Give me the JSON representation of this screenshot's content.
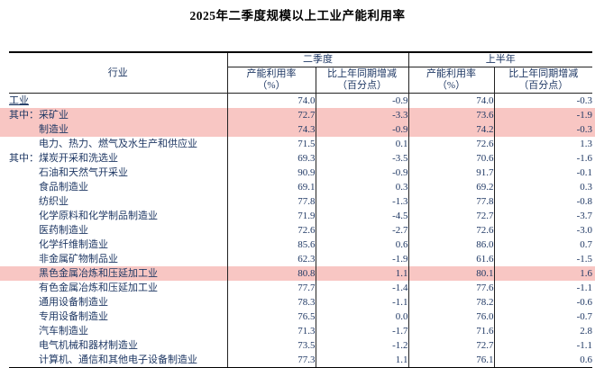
{
  "title": "2025年二季度规模以上工业产能利用率",
  "colors": {
    "highlight": "#f8c6c3",
    "text": "#1f3864",
    "border": "#222222"
  },
  "table": {
    "industry_header": "行业",
    "groups": [
      {
        "label": "二季度",
        "rate_label": "产能利用率",
        "rate_unit": "（%）",
        "chg_label": "比上年同期增减",
        "chg_unit": "（百分点）"
      },
      {
        "label": "上半年",
        "rate_label": "产能利用率",
        "rate_unit": "（%）",
        "chg_label": "比上年同期增减",
        "chg_unit": "（百分点）"
      }
    ],
    "rows": [
      {
        "prefix": "",
        "name": "工业",
        "indent": false,
        "bold": true,
        "underline": true,
        "highlight": false,
        "values": [
          "74.0",
          "-0.9",
          "74.0",
          "-0.3"
        ]
      },
      {
        "prefix": "其中：",
        "name": "采矿业",
        "indent": true,
        "bold": false,
        "underline": false,
        "highlight": true,
        "values": [
          "72.7",
          "-3.3",
          "73.6",
          "-1.9"
        ]
      },
      {
        "prefix": "",
        "name": "制造业",
        "indent": true,
        "bold": false,
        "underline": false,
        "highlight": true,
        "values": [
          "74.3",
          "-0.9",
          "74.2",
          "-0.3"
        ]
      },
      {
        "prefix": "",
        "name": "电力、热力、燃气及水生产和供应业",
        "indent": true,
        "bold": false,
        "underline": false,
        "highlight": false,
        "values": [
          "71.5",
          "0.1",
          "72.6",
          "1.3"
        ]
      },
      {
        "prefix": "其中：",
        "name": "煤炭开采和洗选业",
        "indent": true,
        "bold": false,
        "underline": false,
        "highlight": false,
        "values": [
          "69.3",
          "-3.5",
          "70.6",
          "-1.6"
        ]
      },
      {
        "prefix": "",
        "name": "石油和天然气开采业",
        "indent": true,
        "bold": false,
        "underline": false,
        "highlight": false,
        "values": [
          "90.9",
          "-0.9",
          "91.7",
          "-0.1"
        ]
      },
      {
        "prefix": "",
        "name": "食品制造业",
        "indent": true,
        "bold": false,
        "underline": false,
        "highlight": false,
        "values": [
          "69.1",
          "0.3",
          "69.2",
          "0.3"
        ]
      },
      {
        "prefix": "",
        "name": "纺织业",
        "indent": true,
        "bold": false,
        "underline": false,
        "highlight": false,
        "values": [
          "77.8",
          "-1.3",
          "77.8",
          "-0.8"
        ]
      },
      {
        "prefix": "",
        "name": "化学原料和化学制品制造业",
        "indent": true,
        "bold": false,
        "underline": false,
        "highlight": false,
        "values": [
          "71.9",
          "-4.5",
          "72.7",
          "-3.7"
        ]
      },
      {
        "prefix": "",
        "name": "医药制造业",
        "indent": true,
        "bold": false,
        "underline": false,
        "highlight": false,
        "values": [
          "72.6",
          "-2.7",
          "72.6",
          "-3.0"
        ]
      },
      {
        "prefix": "",
        "name": "化学纤维制造业",
        "indent": true,
        "bold": false,
        "underline": false,
        "highlight": false,
        "values": [
          "85.6",
          "0.6",
          "86.0",
          "0.7"
        ]
      },
      {
        "prefix": "",
        "name": "非金属矿物制品业",
        "indent": true,
        "bold": false,
        "underline": false,
        "highlight": false,
        "values": [
          "62.3",
          "-1.9",
          "61.6",
          "-1.5"
        ]
      },
      {
        "prefix": "",
        "name": "黑色金属冶炼和压延加工业",
        "indent": true,
        "bold": false,
        "underline": false,
        "highlight": true,
        "values": [
          "80.8",
          "1.1",
          "80.1",
          "1.6"
        ]
      },
      {
        "prefix": "",
        "name": "有色金属冶炼和压延加工业",
        "indent": true,
        "bold": false,
        "underline": false,
        "highlight": false,
        "values": [
          "77.7",
          "-1.4",
          "77.6",
          "-1.1"
        ]
      },
      {
        "prefix": "",
        "name": "通用设备制造业",
        "indent": true,
        "bold": false,
        "underline": false,
        "highlight": false,
        "values": [
          "78.3",
          "-1.1",
          "78.2",
          "-0.6"
        ]
      },
      {
        "prefix": "",
        "name": "专用设备制造业",
        "indent": true,
        "bold": false,
        "underline": false,
        "highlight": false,
        "values": [
          "76.5",
          "0.0",
          "76.0",
          "-0.7"
        ]
      },
      {
        "prefix": "",
        "name": "汽车制造业",
        "indent": true,
        "bold": false,
        "underline": false,
        "highlight": false,
        "values": [
          "71.3",
          "-1.7",
          "71.6",
          "2.8"
        ]
      },
      {
        "prefix": "",
        "name": "电气机械和器材制造业",
        "indent": true,
        "bold": false,
        "underline": false,
        "highlight": false,
        "values": [
          "73.5",
          "-1.2",
          "72.7",
          "-1.1"
        ]
      },
      {
        "prefix": "",
        "name": "计算机、通信和其他电子设备制造业",
        "indent": true,
        "bold": false,
        "underline": false,
        "highlight": false,
        "values": [
          "77.3",
          "1.1",
          "76.1",
          "0.6"
        ]
      }
    ]
  }
}
